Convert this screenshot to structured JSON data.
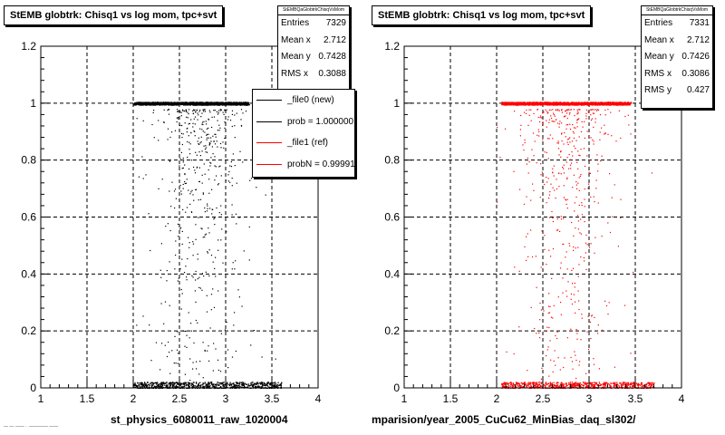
{
  "chart_data": [
    {
      "type": "scatter",
      "title": "StEMB globtrk: Chisq1 vs log mom, tpc+svt",
      "xlabel": "st_physics_6080011_raw_1020004",
      "ylabel": "",
      "xlim": [
        1,
        4
      ],
      "ylim": [
        0,
        1.2
      ],
      "x_ticks": [
        "1",
        "1.5",
        "2",
        "2.5",
        "3",
        "3.5",
        "4"
      ],
      "y_ticks": [
        "0",
        "0.2",
        "0.4",
        "0.6",
        "0.8",
        "1",
        "1.2"
      ],
      "grid": true,
      "marker_color": "#000000",
      "stats": {
        "header": "StEMBQaGlobtrkChisqVsMom",
        "rows": [
          {
            "label": "Entries",
            "value": "7329"
          },
          {
            "label": "Mean x",
            "value": "2.712"
          },
          {
            "label": "Mean y",
            "value": "0.7428"
          },
          {
            "label": "RMS x",
            "value": "0.3088"
          }
        ]
      },
      "legend": {
        "placement": "top-right",
        "entries": [
          {
            "label": "_file0 (new)",
            "color": "#000000"
          },
          {
            "label": "prob = 1.000000",
            "color": "#000000"
          },
          {
            "label": "_file1 (ref)",
            "color": "#ff0000"
          },
          {
            "label": "probN = 0.999910",
            "color": "#ff0000"
          }
        ]
      },
      "distribution": {
        "bands": [
          {
            "y_center": 1.0,
            "y_spread": 0.005,
            "x_range": [
              2.0,
              3.25
            ],
            "count": 1500
          },
          {
            "y_center": 0.01,
            "y_spread": 0.012,
            "x_range": [
              2.0,
              3.6
            ],
            "count": 700
          }
        ],
        "scatter": {
          "x_center": 2.7,
          "x_sigma": 0.25,
          "y_range": [
            0.02,
            0.98
          ],
          "count": 500
        }
      }
    },
    {
      "type": "scatter",
      "title": "StEMB globtrk: Chisq1 vs log mom, tpc+svt",
      "xlabel": "mparision/year_2005_CuCu62_MinBias_daq_sl302/",
      "ylabel": "",
      "xlim": [
        1,
        4
      ],
      "ylim": [
        0,
        1.2
      ],
      "x_ticks": [
        "1",
        "1.5",
        "2",
        "2.5",
        "3",
        "3.5",
        "4"
      ],
      "y_ticks": [
        "0",
        "0.2",
        "0.4",
        "0.6",
        "0.8",
        "1",
        "1.2"
      ],
      "grid": true,
      "marker_color": "#ff0000",
      "stats": {
        "header": "StEMBQaGlobtrkChisqVsMom",
        "rows": [
          {
            "label": "Entries",
            "value": "7331"
          },
          {
            "label": "Mean x",
            "value": "2.712"
          },
          {
            "label": "Mean y",
            "value": "0.7426"
          },
          {
            "label": "RMS x",
            "value": "0.3086"
          },
          {
            "label": "RMS y",
            "value": "0.427"
          }
        ]
      },
      "distribution": {
        "bands": [
          {
            "y_center": 1.0,
            "y_spread": 0.005,
            "x_range": [
              2.05,
              3.45
            ],
            "count": 1500
          },
          {
            "y_center": 0.01,
            "y_spread": 0.012,
            "x_range": [
              2.05,
              3.7
            ],
            "count": 700
          }
        ],
        "scatter": {
          "x_center": 2.75,
          "x_sigma": 0.28,
          "y_range": [
            0.02,
            0.98
          ],
          "count": 500
        }
      }
    }
  ],
  "footnote": "— — —— · ·———— ——"
}
